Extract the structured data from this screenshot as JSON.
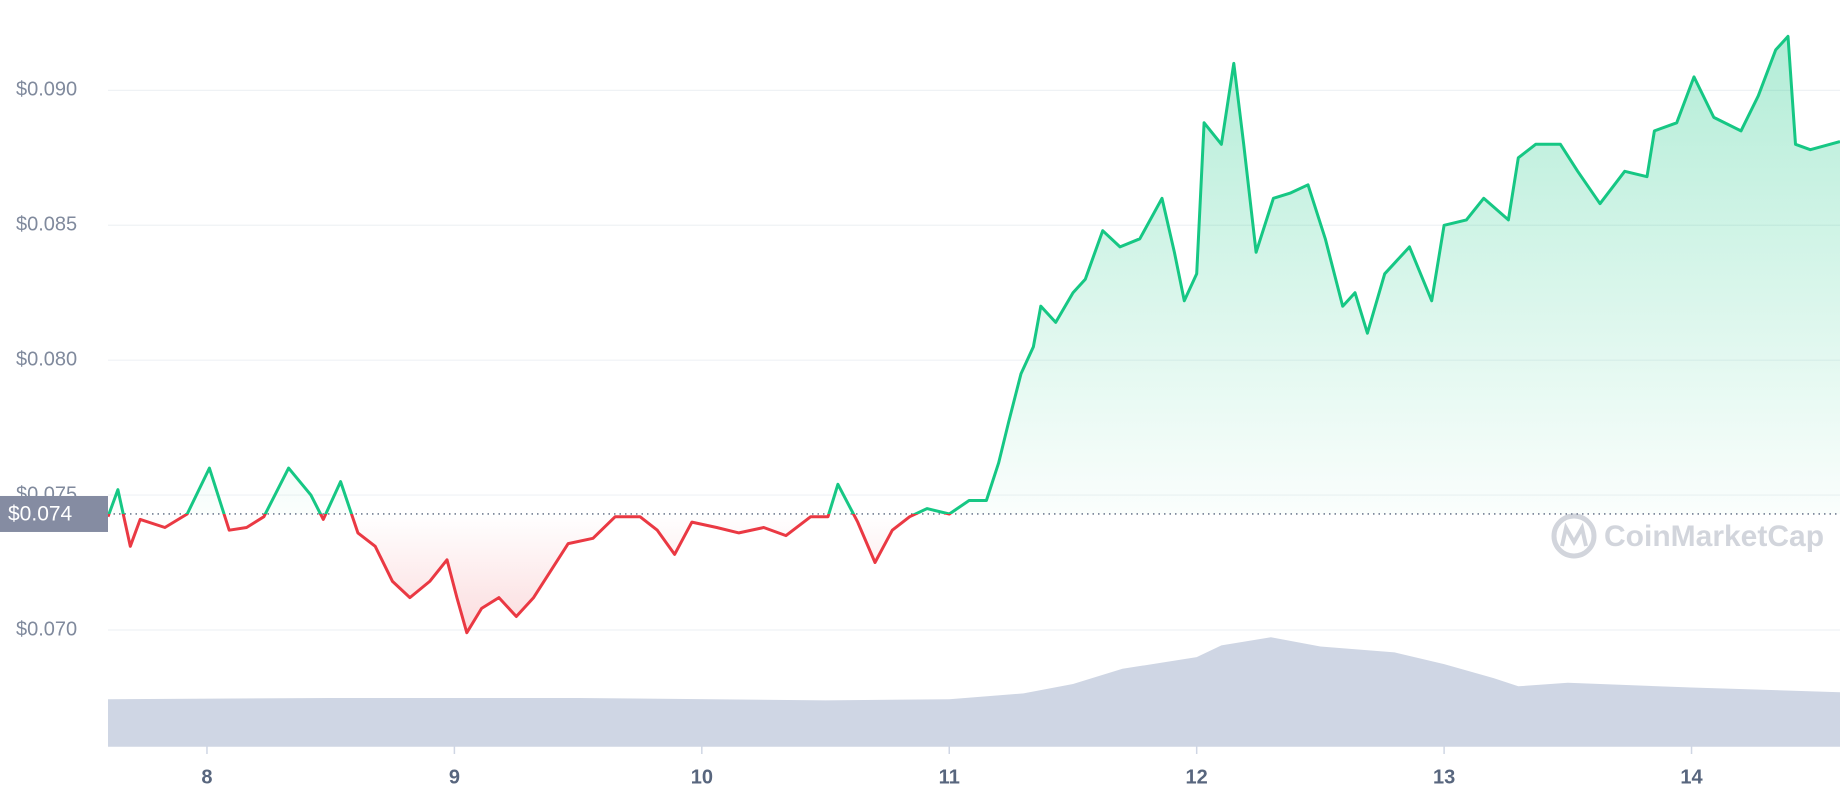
{
  "chart_data": {
    "type": "line",
    "x": [
      7.6,
      7.64,
      7.69,
      7.73,
      7.83,
      7.92,
      8.01,
      8.09,
      8.16,
      8.23,
      8.33,
      8.42,
      8.47,
      8.54,
      8.61,
      8.68,
      8.75,
      8.82,
      8.9,
      8.97,
      9.01,
      9.05,
      9.11,
      9.18,
      9.25,
      9.32,
      9.39,
      9.46,
      9.56,
      9.65,
      9.75,
      9.82,
      9.89,
      9.96,
      10.06,
      10.15,
      10.25,
      10.34,
      10.44,
      10.51,
      10.55,
      10.63,
      10.7,
      10.77,
      10.84,
      10.91,
      11.0,
      11.08,
      11.15,
      11.2,
      11.24,
      11.29,
      11.34,
      11.37,
      11.43,
      11.5,
      11.55,
      11.62,
      11.69,
      11.77,
      11.86,
      11.91,
      11.95,
      12.0,
      12.03,
      12.1,
      12.15,
      12.19,
      12.24,
      12.31,
      12.38,
      12.45,
      12.52,
      12.59,
      12.64,
      12.69,
      12.76,
      12.86,
      12.95,
      13.0,
      13.09,
      13.16,
      13.26,
      13.3,
      13.37,
      13.47,
      13.54,
      13.63,
      13.73,
      13.82,
      13.85,
      13.94,
      14.01,
      14.09,
      14.2,
      14.27,
      14.34,
      14.39,
      14.42,
      14.48,
      14.6
    ],
    "series": [
      {
        "values": [
          0.0742,
          0.0752,
          0.0731,
          0.0741,
          0.0738,
          0.0743,
          0.076,
          0.0737,
          0.0738,
          0.0742,
          0.076,
          0.075,
          0.0741,
          0.0755,
          0.0736,
          0.0731,
          0.0718,
          0.0712,
          0.0718,
          0.0726,
          0.0712,
          0.0699,
          0.0708,
          0.0712,
          0.0705,
          0.0712,
          0.0722,
          0.0732,
          0.0734,
          0.0742,
          0.0742,
          0.0737,
          0.0728,
          0.074,
          0.0738,
          0.0736,
          0.0738,
          0.0735,
          0.0742,
          0.0742,
          0.0754,
          0.074,
          0.0725,
          0.0737,
          0.0742,
          0.0745,
          0.0743,
          0.0748,
          0.0748,
          0.0762,
          0.0777,
          0.0795,
          0.0805,
          0.082,
          0.0814,
          0.0825,
          0.083,
          0.0848,
          0.0842,
          0.0845,
          0.086,
          0.084,
          0.0822,
          0.0832,
          0.0888,
          0.088,
          0.091,
          0.088,
          0.084,
          0.086,
          0.0862,
          0.0865,
          0.0845,
          0.082,
          0.0825,
          0.081,
          0.0832,
          0.0842,
          0.0822,
          0.085,
          0.0852,
          0.086,
          0.0852,
          0.0875,
          0.088,
          0.088,
          0.087,
          0.0858,
          0.087,
          0.0868,
          0.0885,
          0.0888,
          0.0905,
          0.089,
          0.0885,
          0.0898,
          0.0915,
          0.092,
          0.088,
          0.0878,
          0.0881
        ],
        "color_up": "#16c784",
        "color_down": "#ea3943"
      }
    ],
    "baseline": {
      "value": 0.0743,
      "label": "$0.074"
    },
    "volume": {
      "x": [
        7.6,
        8.5,
        9.5,
        10.5,
        11.0,
        11.3,
        11.5,
        11.7,
        12.0,
        12.1,
        12.3,
        12.5,
        12.8,
        13.0,
        13.2,
        13.3,
        13.5,
        14.0,
        14.6
      ],
      "values": [
        40,
        41,
        41,
        39,
        40,
        45,
        53,
        66,
        76,
        86,
        93,
        85,
        80,
        70,
        58,
        51,
        54,
        50,
        46
      ],
      "vlim": [
        0,
        100
      ],
      "color": "#cfd6e4"
    },
    "xlim": [
      7.6,
      14.6
    ],
    "xticks": [
      8,
      9,
      10,
      11,
      12,
      13,
      14
    ],
    "ylim": [
      0.0657,
      0.09335
    ],
    "yticks": [
      {
        "value": 0.07,
        "label": "$0.070"
      },
      {
        "value": 0.075,
        "label": "$0.075"
      },
      {
        "value": 0.08,
        "label": "$0.080"
      },
      {
        "value": 0.085,
        "label": "$0.085"
      },
      {
        "value": 0.09,
        "label": "$0.090"
      }
    ],
    "grid": true,
    "watermark": "CoinMarketCap"
  }
}
